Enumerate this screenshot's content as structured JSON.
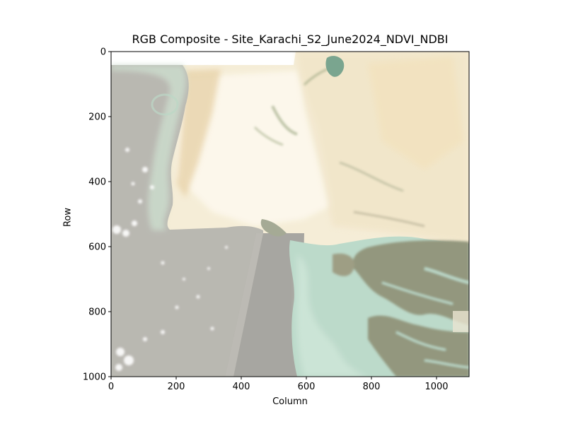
{
  "figure": {
    "title": "RGB Composite - Site_Karachi_S2_June2024_NDVI_NDBI",
    "xlabel": "Column",
    "ylabel": "Row",
    "xticks": [
      {
        "value": 0,
        "label": "0"
      },
      {
        "value": 200,
        "label": "200"
      },
      {
        "value": 400,
        "label": "400"
      },
      {
        "value": 600,
        "label": "600"
      },
      {
        "value": 800,
        "label": "800"
      },
      {
        "value": 1000,
        "label": "1000"
      }
    ],
    "yticks": [
      {
        "value": 0,
        "label": "0"
      },
      {
        "value": 200,
        "label": "200"
      },
      {
        "value": 400,
        "label": "400"
      },
      {
        "value": 600,
        "label": "600"
      },
      {
        "value": 800,
        "label": "800"
      },
      {
        "value": 1000,
        "label": "1000"
      }
    ],
    "xlim": [
      0,
      1100
    ],
    "ylim": [
      0,
      1000
    ],
    "colors": {
      "sea": "#b5b3ac",
      "sea_dark": "#a7a59f",
      "coastal_water": "#c6ddcc",
      "turquoise": "#a9d6c6",
      "land_light": "#f6efd9",
      "land_sand": "#e8d3aa",
      "land_white": "#fdfaf1",
      "vegetation": "#8e9a73",
      "mangrove": "#6d7d63",
      "clouds": "#ffffff"
    }
  }
}
